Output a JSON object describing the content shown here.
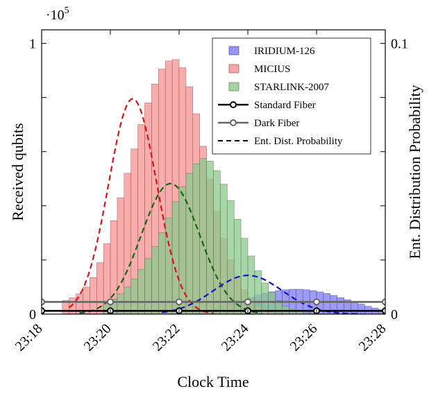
{
  "chart_data": {
    "type": "bar",
    "xlabel": "Clock Time",
    "ylabel_left": "Received qubits",
    "ylabel_right": "Ent. Distribution Probability",
    "left_axis": {
      "multiplier": "·10",
      "multiplier_exp": "5",
      "ylim": [
        0,
        1.05
      ],
      "labeled_ticks": [
        {
          "value": 0,
          "label": "0"
        },
        {
          "value": 1,
          "label": "1"
        }
      ],
      "minor_ticks": [
        0.2,
        0.4,
        0.6,
        0.8
      ]
    },
    "right_axis": {
      "ylim": [
        0,
        0.105
      ],
      "labeled_ticks": [
        {
          "value": 0,
          "label": "0"
        },
        {
          "value": 0.1,
          "label": "0.1"
        }
      ],
      "minor_ticks": [
        0.02,
        0.04,
        0.06,
        0.08
      ]
    },
    "x_axis": {
      "range_minutes": [
        0,
        10
      ],
      "ticks": [
        {
          "value": 0,
          "label": "23:18"
        },
        {
          "value": 2,
          "label": "23:20"
        },
        {
          "value": 4,
          "label": "23:22"
        },
        {
          "value": 6,
          "label": "23:24"
        },
        {
          "value": 8,
          "label": "23:26"
        },
        {
          "value": 10,
          "label": "23:28"
        }
      ]
    },
    "bin_width_minutes": 0.2,
    "series": [
      {
        "name": "IRIDIUM-126",
        "kind": "histogram",
        "color": "#7b7bf0",
        "edge": "#3d3d9e",
        "x_start": 4.4,
        "values": [
          0.005,
          0.01,
          0.016,
          0.022,
          0.03,
          0.038,
          0.046,
          0.054,
          0.062,
          0.07,
          0.077,
          0.082,
          0.087,
          0.09,
          0.092,
          0.092,
          0.09,
          0.087,
          0.082,
          0.076,
          0.069,
          0.061,
          0.053,
          0.045,
          0.037,
          0.029,
          0.022,
          0.016,
          0.011,
          0.007,
          0.004,
          0.002
        ]
      },
      {
        "name": "MICIUS",
        "kind": "histogram",
        "color": "#f59090",
        "edge": "#8a4545",
        "x_start": 0.6,
        "values": [
          0.05,
          0.06,
          0.075,
          0.1,
          0.135,
          0.19,
          0.26,
          0.345,
          0.43,
          0.52,
          0.61,
          0.7,
          0.78,
          0.85,
          0.905,
          0.935,
          0.94,
          0.91,
          0.84,
          0.74,
          0.62,
          0.5,
          0.38,
          0.28,
          0.2,
          0.135,
          0.09,
          0.055,
          0.03,
          0.015,
          0.008
        ]
      },
      {
        "name": "STARLINK-2007",
        "kind": "histogram",
        "color": "#8cc88c",
        "edge": "#4a6b4a",
        "x_start": 1.8,
        "values": [
          0.04,
          0.055,
          0.075,
          0.1,
          0.13,
          0.165,
          0.205,
          0.25,
          0.3,
          0.355,
          0.415,
          0.47,
          0.52,
          0.555,
          0.575,
          0.565,
          0.53,
          0.48,
          0.42,
          0.35,
          0.28,
          0.215,
          0.16,
          0.115,
          0.08,
          0.05,
          0.03,
          0.018,
          0.01,
          0.005
        ]
      },
      {
        "name": "Standard Fiber",
        "kind": "line",
        "color": "#000000",
        "axis": "right",
        "x": [
          0,
          2,
          4,
          6,
          8,
          10
        ],
        "y": [
          0.0012,
          0.0012,
          0.0012,
          0.0012,
          0.0012,
          0.0012
        ]
      },
      {
        "name": "Dark Fiber",
        "kind": "line",
        "color": "#666666",
        "axis": "right",
        "x": [
          0,
          2,
          4,
          6,
          8,
          10
        ],
        "y": [
          0.0045,
          0.0045,
          0.0045,
          0.0045,
          0.0045,
          0.0045
        ]
      },
      {
        "name": "Ent. Dist. Probability",
        "kind": "dashed",
        "axis": "right",
        "curves": [
          {
            "color": "#dd1111",
            "mu": 2.65,
            "sigma": 0.7,
            "peak": 0.0795,
            "from": 0.8,
            "to": 5.0
          },
          {
            "color": "#116611",
            "mu": 3.75,
            "sigma": 0.85,
            "peak": 0.0482,
            "from": 1.1,
            "to": 6.4
          },
          {
            "color": "#1111cc",
            "mu": 6.0,
            "sigma": 1.0,
            "peak": 0.0143,
            "from": 3.5,
            "to": 9.3
          }
        ]
      }
    ],
    "legend": {
      "position": "top-right",
      "entries": [
        {
          "label": "IRIDIUM-126",
          "symbol": "patch",
          "color": "#7b7bf0",
          "edge": "#3d3d9e"
        },
        {
          "label": "MICIUS",
          "symbol": "patch",
          "color": "#f59090",
          "edge": "#8a4545"
        },
        {
          "label": "STARLINK-2007",
          "symbol": "patch",
          "color": "#8cc88c",
          "edge": "#4a6b4a"
        },
        {
          "label": "Standard Fiber",
          "symbol": "line-marker",
          "color": "#000000"
        },
        {
          "label": "Dark Fiber",
          "symbol": "line-marker",
          "color": "#666666"
        },
        {
          "label": "Ent. Dist. Probability",
          "symbol": "dashed",
          "color": "#000000"
        }
      ]
    },
    "grid": false
  }
}
